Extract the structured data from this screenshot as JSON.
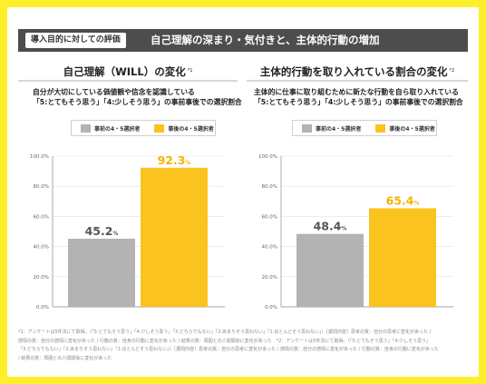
{
  "header": {
    "tag": "導入目的に対しての評価",
    "title": "自己理解の深まり・気付きと、主体的行動の増加"
  },
  "colors": {
    "before": "#b3b3b3",
    "after": "#fbc320",
    "grid": "#e2e2e2",
    "axis": "#888888"
  },
  "legend": {
    "before": "事前の4・5選択者",
    "after": "事後の4・5選択者"
  },
  "chart_data": [
    {
      "type": "bar",
      "title": "自己理解（WILL）の変化",
      "note_mark": "*1",
      "subtitle_lines": [
        "自分が大切にしている価値観や信念を認識している",
        "「5:とてもそう思う」「4:少しそう思う」の事前事後での選択割合"
      ],
      "categories": [
        "事前の4・5選択者",
        "事後の4・5選択者"
      ],
      "values": [
        45.2,
        92.3
      ],
      "value_labels": [
        "45.2",
        "92.3"
      ],
      "unit": "%",
      "ylim": [
        0,
        100
      ],
      "yticks": [
        "0.0%",
        "20.0%",
        "40.0%",
        "60.0%",
        "80.0%",
        "100.0%"
      ],
      "grid": true
    },
    {
      "type": "bar",
      "title": "主体的行動を取り入れている割合の変化",
      "note_mark": "*2",
      "subtitle_lines": [
        "主体的に仕事に取り組むために新たな行動を自ら取り入れている",
        "「5:とてもそう思う」「4:少しそう思う」の事前事後での選択割合"
      ],
      "categories": [
        "事前の4・5選択者",
        "事後の4・5選択者"
      ],
      "values": [
        48.4,
        65.4
      ],
      "value_labels": [
        "48.4",
        "65.4"
      ],
      "unit": "%",
      "ylim": [
        0,
        100
      ],
      "yticks": [
        "0.0%",
        "20.0%",
        "40.0%",
        "60.0%",
        "80.0%",
        "100.0%"
      ],
      "grid": true
    }
  ],
  "footnote": [
    "*1：アンケートは5件法にて取得。（「5:とてもそう思う」「4:少しそう思う」「3:どちらでもない」「2:あまりそう思わない」「1:ほとんどそう思わない」）［振問内容］思考の質：自分の思考に変化があった /",
    "感情の質：自分の感情に変化があった / 行動の質：自身の行動に変化があった / 結果の質：周囲との人間関係に変化があった　*2：アンケートは5件法にて取得。（「5:とてもそう思う」「4:少しそう思う」",
    "「3:どちらでもない」「2:あまりそう思わない」「1:ほとんどそう思わない」）［振問内容］思考の質：自分の思考に変化があった / 感情の質：自分の感情に変化があった / 行動の質：自身の行動に変化があった",
    "/ 結果の質：周囲との人間関係に変化があった"
  ]
}
